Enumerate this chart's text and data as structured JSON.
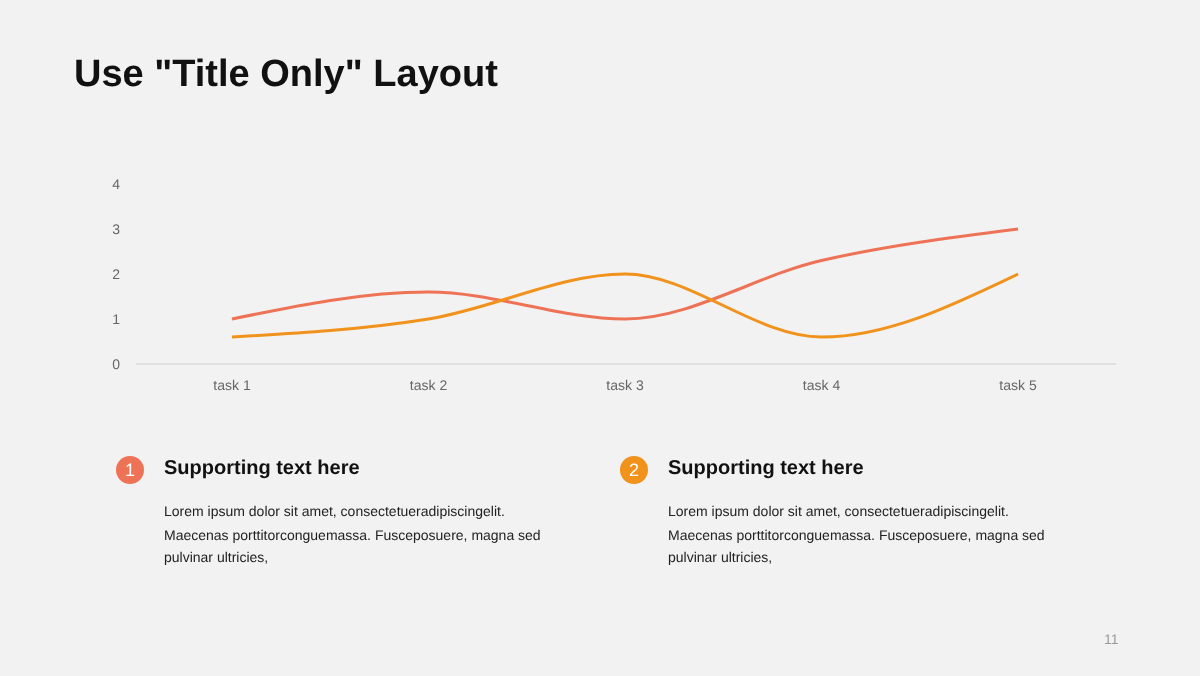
{
  "chart_data": {
    "type": "line",
    "title": "Use \"Title Only\" Layout",
    "categories": [
      "task 1",
      "task 2",
      "task 3",
      "task 4",
      "task 5"
    ],
    "series": [
      {
        "color": "#ee7255",
        "values": [
          1,
          1.6,
          1,
          2.3,
          3
        ]
      },
      {
        "color": "#f0921c",
        "values": [
          0.6,
          1,
          2,
          0.6,
          2
        ]
      }
    ],
    "ylim": [
      0,
      4
    ],
    "yticks": [
      0,
      1,
      2,
      3,
      4
    ],
    "grid": false,
    "legend": false,
    "marker": "none",
    "line_style": "solid",
    "annotations": [
      "1",
      "Supporting text here",
      "Lorem ipsum dolor sit amet, consectetueradipiscingelit. Maecenas porttitorconguemassa. Fusceposuere, magna sed pulvinar ultricies,",
      "2",
      "Supporting text here",
      "Lorem ipsum dolor sit amet, consectetueradipiscingelit. Maecenas porttitorconguemassa. Fusceposuere, magna sed pulvinar ultricies,",
      "11"
    ]
  }
}
